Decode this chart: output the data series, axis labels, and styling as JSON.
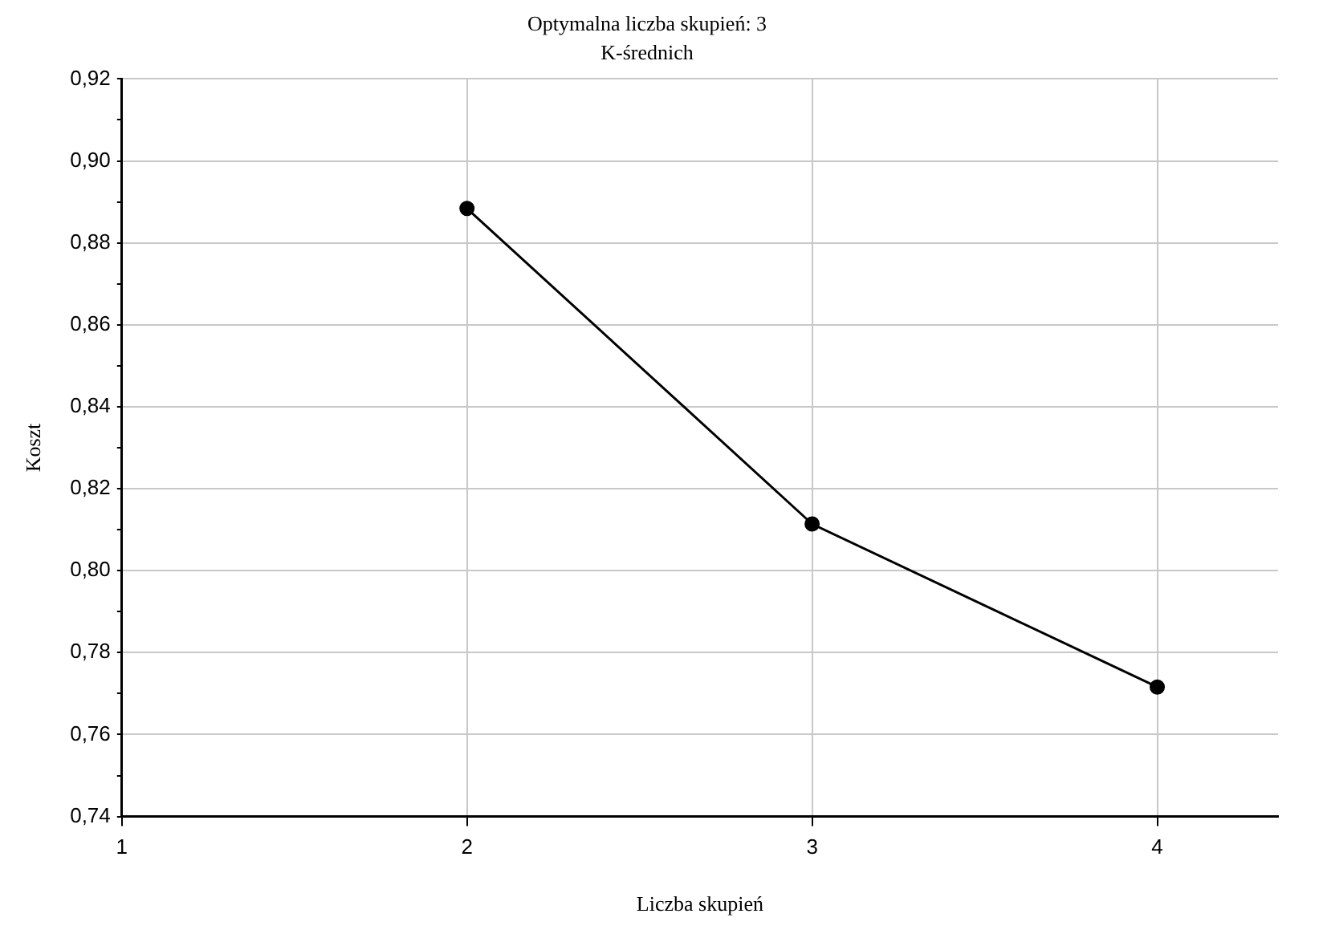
{
  "chart_data": {
    "type": "line",
    "title": "Optymalna liczba skupień: 3",
    "subtitle": "K-średnich",
    "xlabel": "Liczba skupień",
    "ylabel": "Koszt",
    "x": [
      2,
      3,
      4
    ],
    "series": [
      {
        "color": "#000000",
        "values": [
          0.8884,
          0.8114,
          0.7716
        ]
      }
    ],
    "xlim": [
      1,
      4.35
    ],
    "xticks": [
      1,
      2,
      3,
      4
    ],
    "ylim": [
      0.74,
      0.92
    ],
    "yticks": [
      {
        "value": 0.74,
        "label": "0,74"
      },
      {
        "value": 0.75,
        "label": null
      },
      {
        "value": 0.76,
        "label": "0,76"
      },
      {
        "value": 0.77,
        "label": null
      },
      {
        "value": 0.78,
        "label": "0,78"
      },
      {
        "value": 0.79,
        "label": null
      },
      {
        "value": 0.8,
        "label": "0,80"
      },
      {
        "value": 0.81,
        "label": null
      },
      {
        "value": 0.82,
        "label": "0,82"
      },
      {
        "value": 0.83,
        "label": null
      },
      {
        "value": 0.84,
        "label": "0,84"
      },
      {
        "value": 0.85,
        "label": null
      },
      {
        "value": 0.86,
        "label": "0,86"
      },
      {
        "value": 0.87,
        "label": null
      },
      {
        "value": 0.88,
        "label": "0,88"
      },
      {
        "value": 0.89,
        "label": null
      },
      {
        "value": 0.9,
        "label": "0,90"
      },
      {
        "value": 0.91,
        "label": null
      },
      {
        "value": 0.92,
        "label": "0,92"
      }
    ],
    "grid": true,
    "legend": false,
    "marker": "circle",
    "line_style": "solid"
  }
}
